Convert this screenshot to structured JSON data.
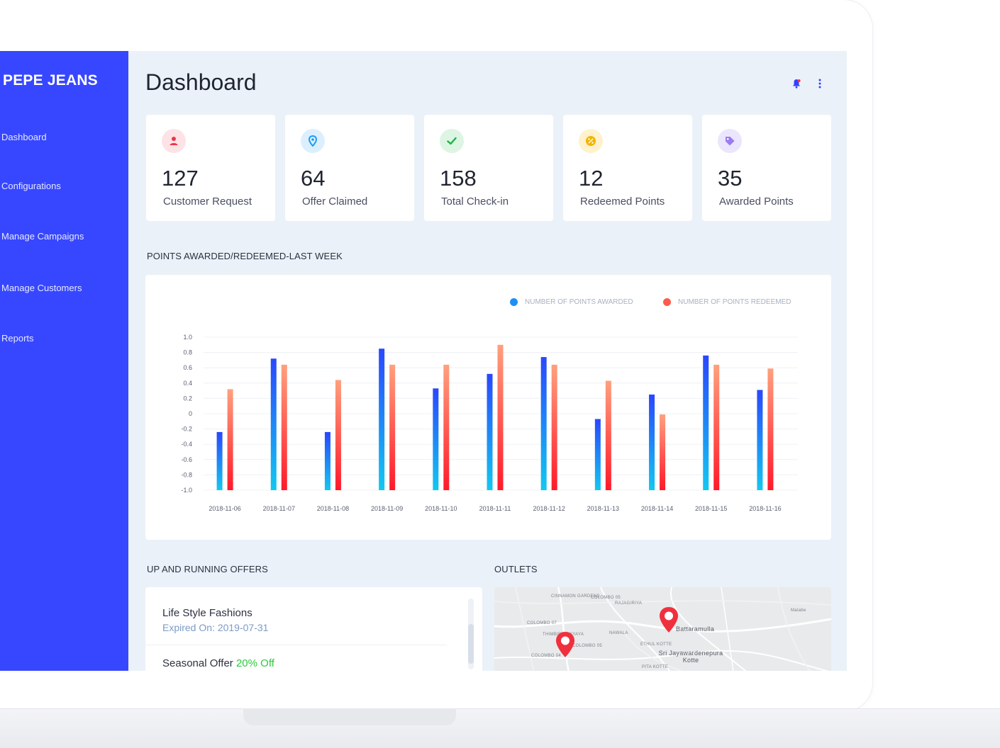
{
  "sidebar": {
    "brand": "PEPE JEANS",
    "items": [
      {
        "label": "Dashboard"
      },
      {
        "label": "Configurations"
      },
      {
        "label": "Manage Campaigns"
      },
      {
        "label": "Manage Customers"
      },
      {
        "label": "Reports"
      }
    ],
    "color": "#3747ff"
  },
  "header": {
    "title": "Dashboard",
    "icons": [
      "bell-icon",
      "more-vertical-icon"
    ]
  },
  "stats": [
    {
      "value": "127",
      "label": "Customer Request",
      "icon": "user-icon",
      "color": "#f0344a",
      "bg": "#fde3e6"
    },
    {
      "value": "64",
      "label": "Offer Claimed",
      "icon": "location-icon",
      "color": "#1e9bf0",
      "bg": "#dcefff"
    },
    {
      "value": "158",
      "label": "Total Check-in",
      "icon": "check-icon",
      "color": "#1fb24a",
      "bg": "#ddf5e3"
    },
    {
      "value": "12",
      "label": "Redeemed Points",
      "icon": "percent-coin-icon",
      "color": "#f5b400",
      "bg": "#fff2cc"
    },
    {
      "value": "35",
      "label": "Awarded Points",
      "icon": "tag-icon",
      "color": "#9a7cf0",
      "bg": "#ebe5fd"
    }
  ],
  "chart_section": {
    "title": "POINTS AWARDED/REDEEMED-LAST WEEK"
  },
  "chart_data": {
    "type": "bar",
    "categories": [
      "2018-11-06",
      "2018-11-07",
      "2018-11-08",
      "2018-11-09",
      "2018-11-10",
      "2018-11-11",
      "2018-11-12",
      "2018-11-13",
      "2018-11-14",
      "2018-11-15",
      "2018-11-16"
    ],
    "series": [
      {
        "name": "NUMBER OF POINTS AWARDED",
        "values": [
          -0.24,
          0.72,
          -0.24,
          0.85,
          0.33,
          0.52,
          0.74,
          -0.07,
          0.25,
          0.76,
          0.31
        ],
        "color": "#2a47ff",
        "color_end": "#12c8f0"
      },
      {
        "name": "NUMBER OF POINTS REDEEMED",
        "values": [
          0.32,
          0.64,
          0.44,
          0.64,
          0.64,
          0.9,
          0.64,
          0.43,
          -0.01,
          0.64,
          0.59
        ],
        "color": "#ffa07e",
        "color_end": "#ff1a2a"
      }
    ],
    "yticks": [
      "1.0",
      "0.8",
      "0.6",
      "0.4",
      "0.2",
      "0",
      "-0.2",
      "-0.4",
      "-0.6",
      "-0.8",
      "-1.0"
    ],
    "ylim": [
      -1.0,
      1.0
    ],
    "grid": true,
    "legend": "top-right"
  },
  "offers_section": {
    "title": "UP AND RUNNING OFFERS",
    "items": [
      {
        "name": "Life Style Fashions",
        "sub": "Expired On: 2019-07-31"
      },
      {
        "name": "Seasonal Offer",
        "highlight": "20% Off"
      }
    ]
  },
  "outlets_section": {
    "title": "OUTLETS",
    "labels": [
      "CINNAMON GARDENS",
      "COLOMBO 05",
      "RAJAGIRIYA",
      "COLOMBO 07",
      "THIMBIRIGASYAYA",
      "NAWALA",
      "Battaramulla",
      "COLOMBO 05",
      "ETHUL KOTTE",
      "Sri Jayawardenepura Kotte",
      "COLOMBO 04",
      "PITA KOTTE",
      "Malabe"
    ],
    "marker_color": "#f0303e"
  }
}
